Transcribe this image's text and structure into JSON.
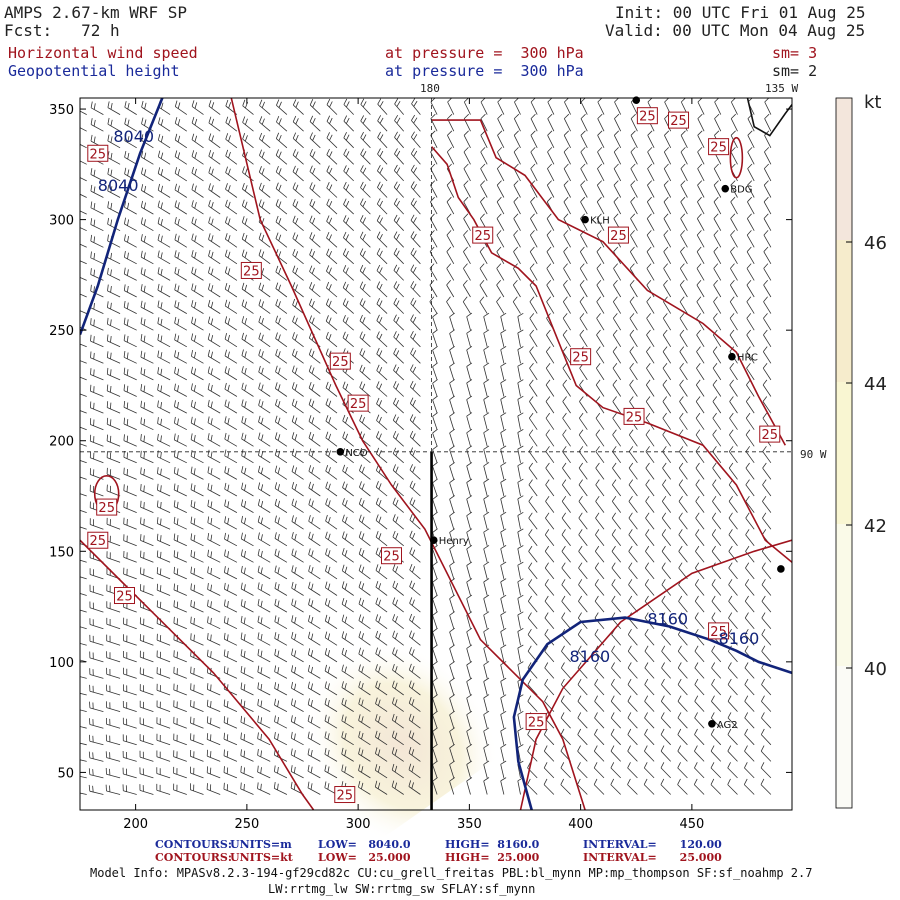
{
  "header": {
    "model": "AMPS 2.67-km WRF SP",
    "fcst": "Fcst:   72 h",
    "init": "Init: 00 UTC Fri 01 Aug 25",
    "valid": "Valid: 00 UTC Mon 04 Aug 25",
    "field1": "Horizontal wind speed",
    "field2": "Geopotential height",
    "pressure1": "at pressure =  300 hPa",
    "pressure2": "at pressure =  300 hPa",
    "sm1": "sm= 3",
    "sm2": "sm= 2",
    "lon_top": "180",
    "lon_top_right": "135 W",
    "lon_right": "90 W"
  },
  "chart_data": {
    "type": "contour",
    "xlim": [
      175,
      495
    ],
    "ylim": [
      33,
      355
    ],
    "xticks": [
      200,
      250,
      300,
      350,
      400,
      450
    ],
    "yticks": [
      50,
      100,
      150,
      200,
      250,
      300,
      350
    ],
    "grid_lines": {
      "lon_180_x": 333,
      "lat_90w_y": 195
    },
    "wind_speed_contours": {
      "units": "kt",
      "level": 25,
      "color": "#a0141e",
      "label": "25"
    },
    "height_contours": {
      "units": "m",
      "color": "#12247a",
      "labels": [
        "8040",
        "8040",
        "8160",
        "8160",
        "8160"
      ]
    },
    "stations": [
      {
        "name": "KLH",
        "x": 402,
        "y": 300
      },
      {
        "name": "BDG",
        "x": 465,
        "y": 314
      },
      {
        "name": "HRC",
        "x": 468,
        "y": 238
      },
      {
        "name": "NCO",
        "x": 292,
        "y": 195
      },
      {
        "name": "Henry",
        "x": 334,
        "y": 155
      },
      {
        "name": "AG2",
        "x": 459,
        "y": 72
      },
      {
        "name": "",
        "x": 490,
        "y": 142
      },
      {
        "name": "",
        "x": 425,
        "y": 354
      }
    ],
    "colorbar": {
      "units": "kt",
      "ticks": [
        40,
        42,
        44,
        46
      ],
      "colors": [
        "#fbfbf6",
        "#fafae8",
        "#f9f6d2",
        "#f6eccc",
        "#f3e6dc"
      ]
    }
  },
  "footer": {
    "contours1_label": "CONTOURS:",
    "contours1_units": "UNITS=m",
    "contours1_low": "LOW=   8040.0",
    "contours1_high": "HIGH=  8160.0",
    "contours1_interval": "INTERVAL=      120.00",
    "contours2_label": "CONTOURS:",
    "contours2_units": "UNITS=kt",
    "contours2_low": "LOW=   25.000",
    "contours2_high": "HIGH=  25.000",
    "contours2_interval": "INTERVAL=      25.000",
    "model_info": "Model Info: MPASv8.2.3-194-gf29cd82c CU:cu_grell_freitas PBL:bl_mynn MP:mp_thompson SF:sf_noahmp 2.7",
    "model_info2": "LW:rrtmg_lw SW:rrtmg_sw SFLAY:sf_mynn"
  }
}
